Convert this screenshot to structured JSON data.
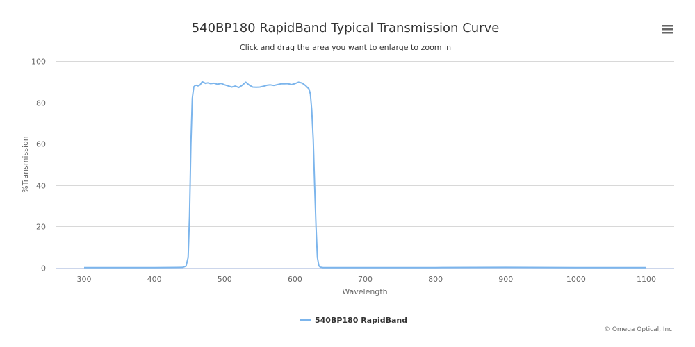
{
  "chart_data": {
    "type": "line",
    "title": "540BP180 RapidBand Typical Transmission Curve",
    "subtitle": "Click and drag the area you want to enlarge to zoom in",
    "xlabel": "Wavelength",
    "ylabel": "%Transmission",
    "xlim": [
      300,
      1100
    ],
    "ylim": [
      0,
      100
    ],
    "x_ticks": [
      300,
      400,
      500,
      600,
      700,
      800,
      900,
      1000,
      1100
    ],
    "y_ticks": [
      0,
      20,
      40,
      60,
      80,
      100
    ],
    "grid": true,
    "legend_position": "bottom-center",
    "series": [
      {
        "name": "540BP180 RapidBand",
        "color": "#7cb5ec",
        "x": [
          300,
          350,
          400,
          440,
          445,
          448,
          450,
          452,
          454,
          456,
          458,
          460,
          462,
          465,
          468,
          470,
          473,
          476,
          480,
          485,
          490,
          495,
          500,
          505,
          510,
          515,
          520,
          525,
          530,
          535,
          540,
          545,
          550,
          555,
          560,
          565,
          570,
          575,
          580,
          585,
          590,
          595,
          600,
          605,
          610,
          615,
          620,
          622,
          624,
          626,
          628,
          630,
          632,
          634,
          636,
          638,
          640,
          650,
          700,
          800,
          900,
          1000,
          1100
        ],
        "y": [
          0.1,
          0.1,
          0.1,
          0.2,
          0.8,
          5,
          25,
          60,
          82,
          87.5,
          88.2,
          88.3,
          88,
          88.5,
          90,
          89.7,
          89.2,
          89.5,
          89.1,
          89.3,
          88.8,
          89.2,
          88.5,
          88,
          87.4,
          87.9,
          87.2,
          88.3,
          89.8,
          88.4,
          87.4,
          87.3,
          87.4,
          87.8,
          88.3,
          88.5,
          88.2,
          88.6,
          89,
          89,
          89.1,
          88.6,
          89.1,
          89.8,
          89.4,
          88.2,
          86.5,
          84,
          76,
          62,
          40,
          20,
          5,
          1,
          0.3,
          0.2,
          0.1,
          0.1,
          0.1,
          0.1,
          0.2,
          0.1,
          0.1
        ]
      }
    ]
  },
  "menu": {
    "icon": "hamburger-menu-icon"
  },
  "credit": "© Omega Optical, Inc."
}
